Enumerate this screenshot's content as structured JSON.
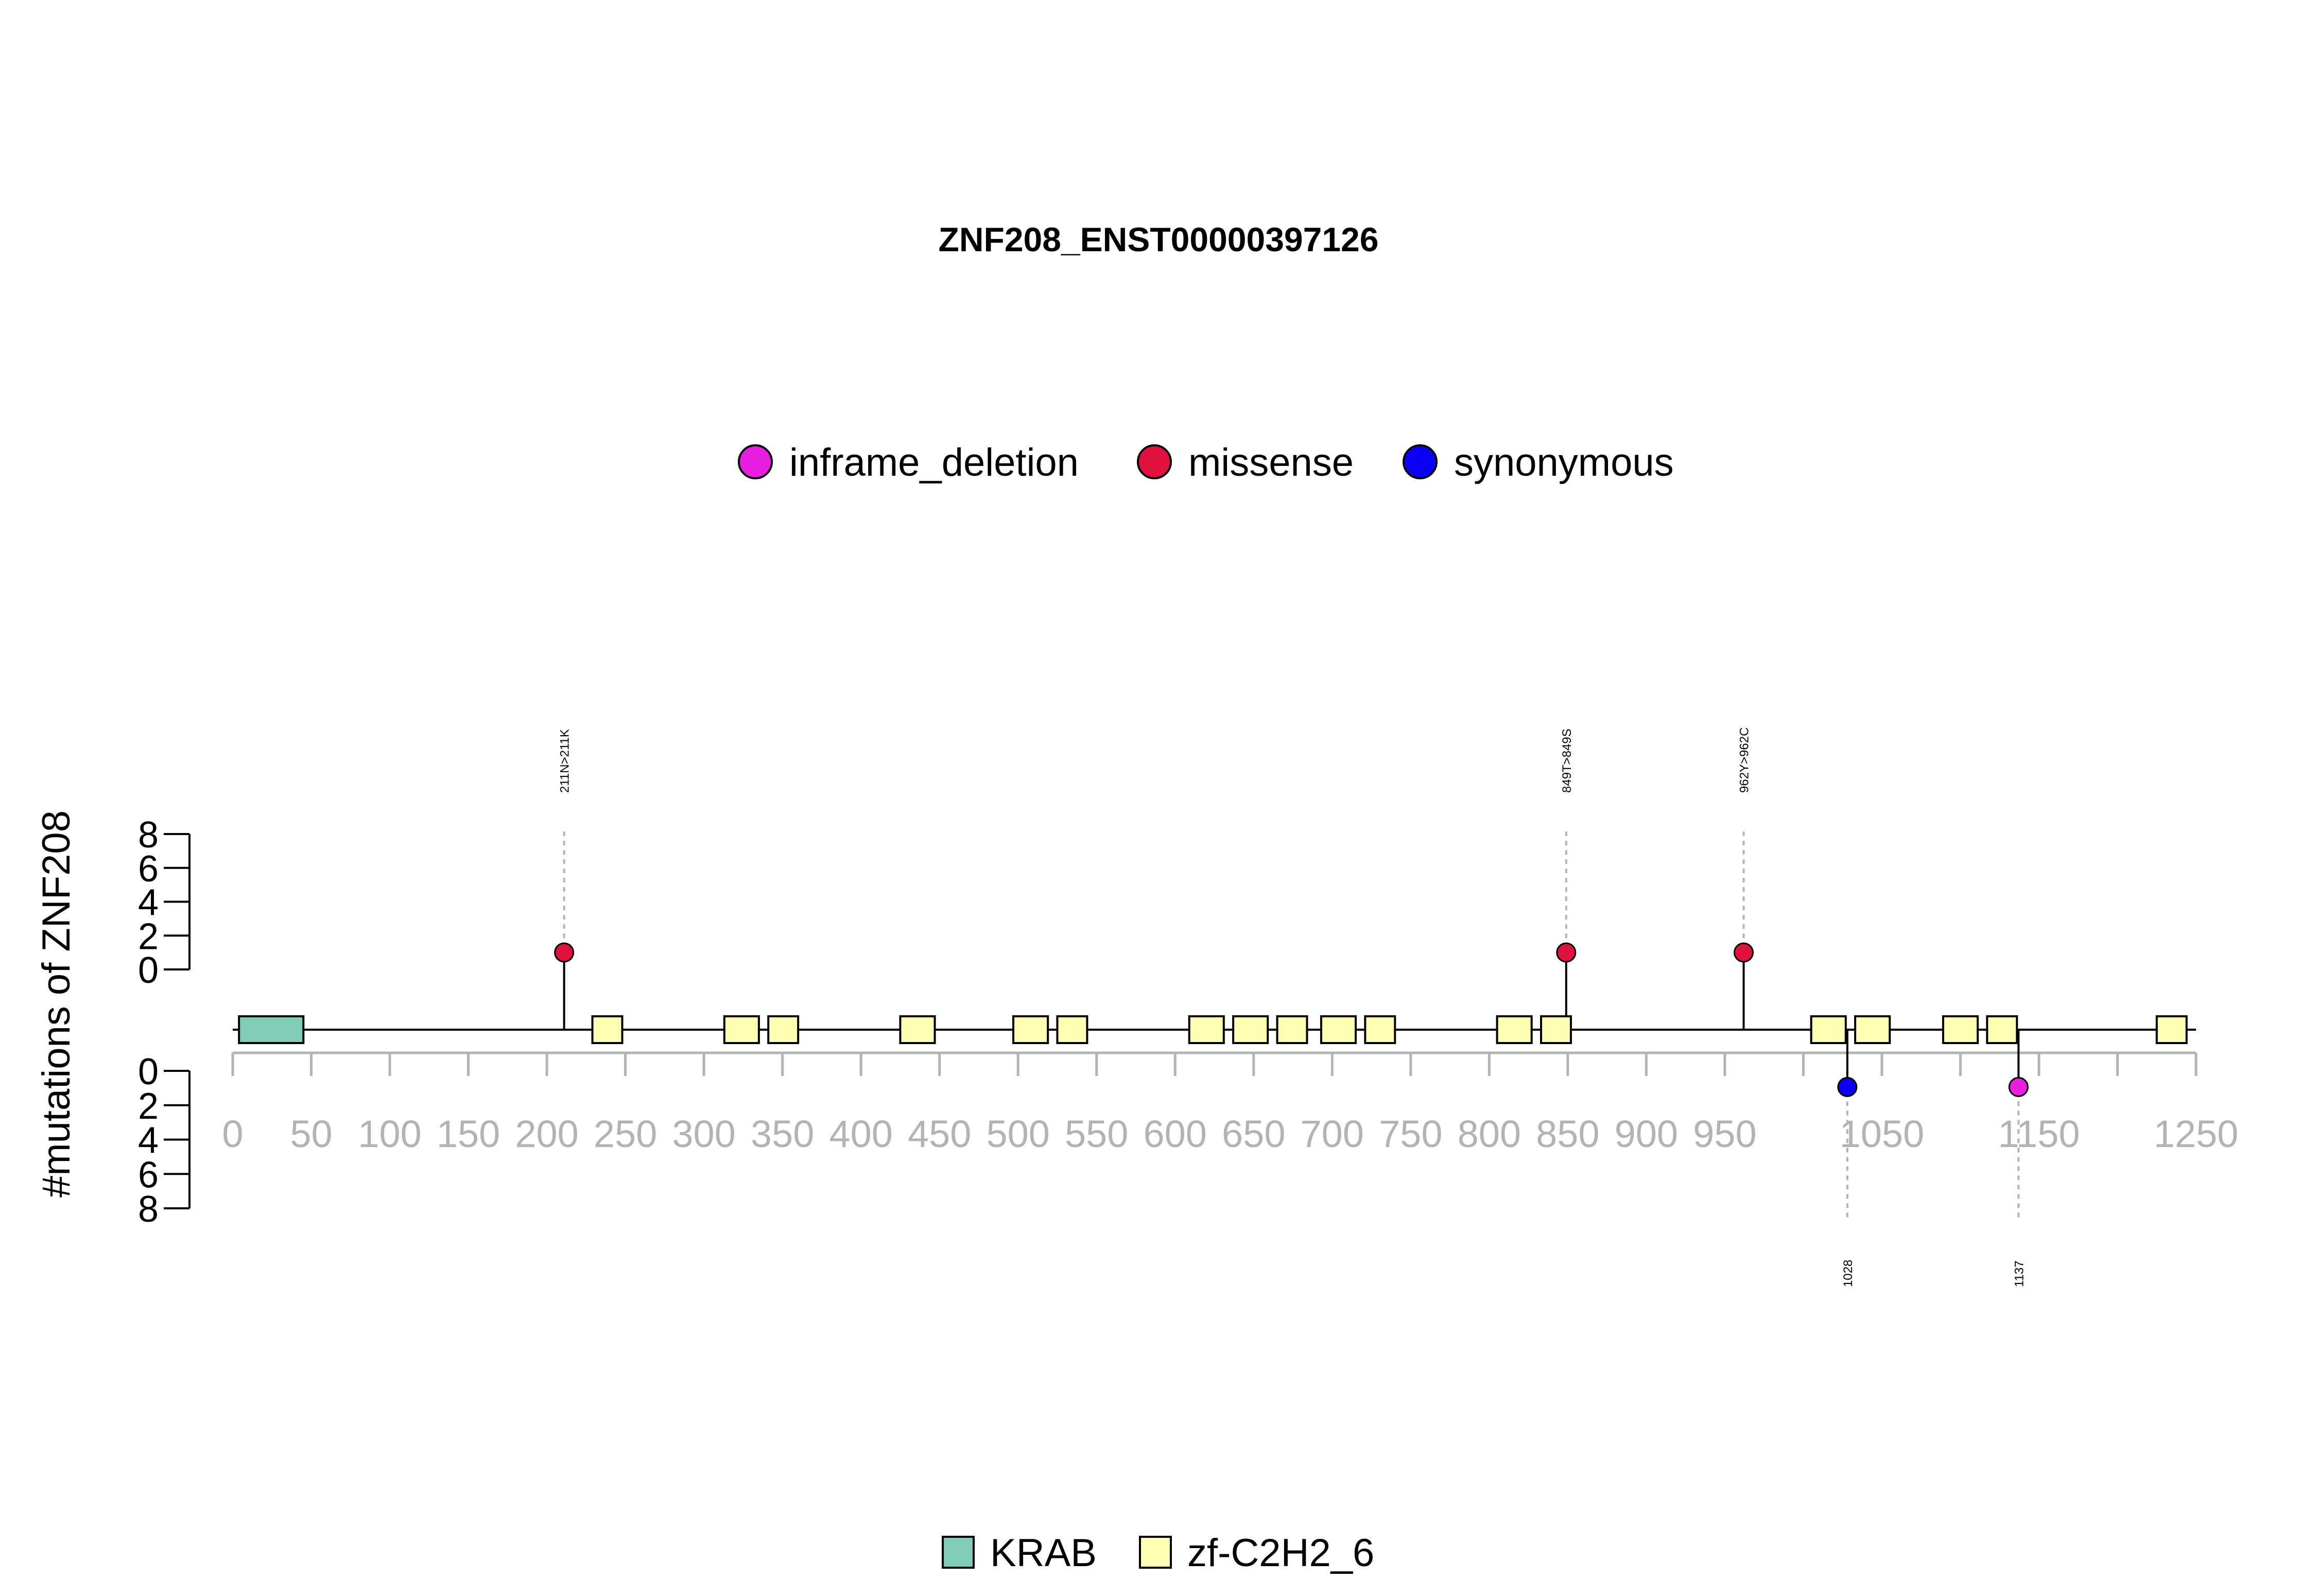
{
  "chart_data": {
    "type": "lollipop",
    "title": "ZNF208_ENST00000397126",
    "ylabel": "#mutations of ZNF208",
    "protein_length": 1250,
    "xlim": [
      0,
      1250
    ],
    "x_ticks": [
      0,
      50,
      100,
      150,
      200,
      250,
      300,
      350,
      400,
      450,
      500,
      550,
      600,
      650,
      700,
      750,
      800,
      850,
      900,
      950,
      1000,
      1050,
      1100,
      1150,
      1200,
      1250
    ],
    "x_tick_labels": [
      "0",
      "50",
      "100",
      "150",
      "200",
      "250",
      "300",
      "350",
      "400",
      "450",
      "500",
      "550",
      "600",
      "650",
      "700",
      "750",
      "800",
      "850",
      "900",
      "950",
      "1050",
      "1150",
      "1250"
    ],
    "x_labeled_ticks": [
      0,
      50,
      100,
      150,
      200,
      250,
      300,
      350,
      400,
      450,
      500,
      550,
      600,
      650,
      700,
      750,
      800,
      850,
      900,
      950,
      1050,
      1150,
      1250
    ],
    "y_ticks": [
      0,
      2,
      4,
      6,
      8
    ],
    "y_tick_labels": [
      "0",
      "2",
      "4",
      "6",
      "8"
    ],
    "ylim": [
      0,
      8
    ],
    "mutation_legend": [
      {
        "name": "inframe_deletion",
        "color": "#e81ee0"
      },
      {
        "name": "missense",
        "color": "#e0103f"
      },
      {
        "name": "synonymous",
        "color": "#0a00f5"
      }
    ],
    "domain_legend": [
      {
        "name": "KRAB",
        "color": "#7fccb8"
      },
      {
        "name": "zf-C2H2_6",
        "color": "#fffeb3"
      }
    ],
    "mutations_top": [
      {
        "position": 211,
        "count": 1,
        "type": "missense",
        "label": "211N>211K"
      },
      {
        "position": 849,
        "count": 1,
        "type": "missense",
        "label": "849T>849S"
      },
      {
        "position": 962,
        "count": 1,
        "type": "missense",
        "label": "962Y>962C"
      }
    ],
    "mutations_bottom": [
      {
        "position": 1028,
        "count": 1,
        "type": "synonymous",
        "label": "1028"
      },
      {
        "position": 1137,
        "count": 1,
        "type": "inframe_deletion",
        "label": "1137"
      }
    ],
    "domains": [
      {
        "name": "KRAB",
        "start": 4,
        "end": 45
      },
      {
        "name": "zf-C2H2_6",
        "start": 229,
        "end": 248
      },
      {
        "name": "zf-C2H2_6",
        "start": 313,
        "end": 335
      },
      {
        "name": "zf-C2H2_6",
        "start": 341,
        "end": 360
      },
      {
        "name": "zf-C2H2_6",
        "start": 425,
        "end": 447
      },
      {
        "name": "zf-C2H2_6",
        "start": 497,
        "end": 519
      },
      {
        "name": "zf-C2H2_6",
        "start": 525,
        "end": 544
      },
      {
        "name": "zf-C2H2_6",
        "start": 609,
        "end": 631
      },
      {
        "name": "zf-C2H2_6",
        "start": 637,
        "end": 659
      },
      {
        "name": "zf-C2H2_6",
        "start": 665,
        "end": 684
      },
      {
        "name": "zf-C2H2_6",
        "start": 693,
        "end": 715
      },
      {
        "name": "zf-C2H2_6",
        "start": 721,
        "end": 740
      },
      {
        "name": "zf-C2H2_6",
        "start": 805,
        "end": 827
      },
      {
        "name": "zf-C2H2_6",
        "start": 833,
        "end": 852
      },
      {
        "name": "zf-C2H2_6",
        "start": 1005,
        "end": 1027
      },
      {
        "name": "zf-C2H2_6",
        "start": 1033,
        "end": 1055
      },
      {
        "name": "zf-C2H2_6",
        "start": 1089,
        "end": 1111
      },
      {
        "name": "zf-C2H2_6",
        "start": 1117,
        "end": 1136
      },
      {
        "name": "zf-C2H2_6",
        "start": 1225,
        "end": 1244
      }
    ]
  }
}
